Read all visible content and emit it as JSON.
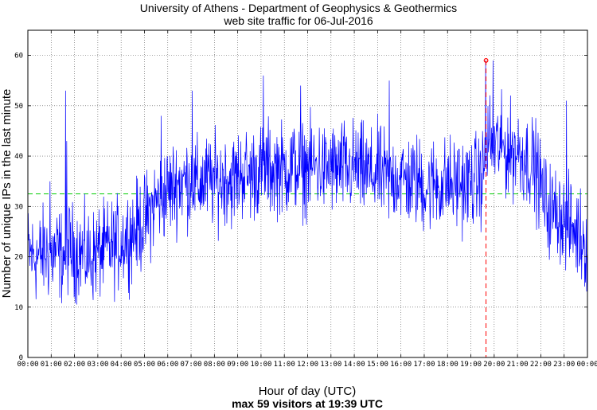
{
  "chart_data": {
    "type": "line",
    "title_lines": [
      "University of Athens - Department of Geophysics & Geothermics",
      "web site traffic for 06-Jul-2016"
    ],
    "xlabel": "Hour of day (UTC)",
    "xlabel_sub": "max 59 visitors at 19:39 UTC",
    "ylabel": "Number of unique IPs in the last minute",
    "x_unit": "hour",
    "xlim": [
      0,
      24
    ],
    "ylim": [
      0,
      65
    ],
    "y_ticks": [
      0,
      10,
      20,
      30,
      40,
      50,
      60
    ],
    "x_tick_labels": [
      "00:00",
      "01:00",
      "02:00",
      "03:00",
      "04:00",
      "05:00",
      "06:00",
      "07:00",
      "08:00",
      "09:00",
      "10:00",
      "11:00",
      "12:00",
      "13:00",
      "14:00",
      "15:00",
      "16:00",
      "17:00",
      "18:00",
      "19:00",
      "20:00",
      "21:00",
      "22:00",
      "23:00",
      "00:00"
    ],
    "grid": true,
    "series": [
      {
        "name": "unique IPs per minute",
        "color": "#0000ff",
        "x": [
          0,
          0.25,
          0.5,
          0.75,
          1.0,
          1.25,
          1.5,
          1.75,
          2.0,
          2.25,
          2.5,
          2.75,
          3.0,
          3.25,
          3.5,
          3.75,
          4.0,
          4.25,
          4.5,
          4.75,
          5.0,
          5.25,
          5.5,
          5.75,
          6.0,
          6.25,
          6.5,
          6.75,
          7.0,
          7.25,
          7.5,
          7.75,
          8.0,
          8.25,
          8.5,
          8.75,
          9.0,
          9.25,
          9.5,
          9.75,
          10.0,
          10.25,
          10.5,
          10.75,
          11.0,
          11.25,
          11.5,
          11.75,
          12.0,
          12.25,
          12.5,
          12.75,
          13.0,
          13.25,
          13.5,
          13.75,
          14.0,
          14.25,
          14.5,
          14.75,
          15.0,
          15.25,
          15.5,
          15.75,
          16.0,
          16.25,
          16.5,
          16.75,
          17.0,
          17.25,
          17.5,
          17.75,
          18.0,
          18.25,
          18.5,
          18.75,
          19.0,
          19.25,
          19.5,
          19.65,
          19.75,
          20.0,
          20.25,
          20.5,
          20.75,
          21.0,
          21.25,
          21.5,
          21.75,
          22.0,
          22.25,
          22.5,
          22.75,
          23.0,
          23.25,
          23.5,
          23.75,
          24.0
        ],
        "mean": [
          21,
          20,
          20,
          21,
          20,
          21,
          20,
          22,
          21,
          21,
          20,
          20,
          21,
          21,
          22,
          22,
          23,
          24,
          25,
          26,
          27,
          29,
          31,
          32,
          33,
          34,
          35,
          35,
          35,
          34,
          35,
          35,
          35,
          35,
          36,
          35,
          36,
          37,
          36,
          37,
          37,
          38,
          37,
          38,
          37,
          38,
          38,
          37,
          38,
          38,
          38,
          37,
          38,
          37,
          38,
          37,
          38,
          37,
          37,
          36,
          37,
          36,
          35,
          36,
          36,
          35,
          35,
          35,
          34,
          34,
          35,
          34,
          35,
          34,
          35,
          34,
          35,
          35,
          36,
          42,
          43,
          42,
          42,
          41,
          41,
          41,
          40,
          39,
          38,
          34,
          30,
          29,
          29,
          27,
          26,
          25,
          24,
          22
        ],
        "spread": 7,
        "spikes": [
          {
            "x": 0.95,
            "y": 35
          },
          {
            "x": 1.62,
            "y": 53
          },
          {
            "x": 1.67,
            "y": 43
          },
          {
            "x": 5.72,
            "y": 48
          },
          {
            "x": 7.05,
            "y": 53
          },
          {
            "x": 10.1,
            "y": 56
          },
          {
            "x": 11.7,
            "y": 54
          },
          {
            "x": 15.5,
            "y": 55
          },
          {
            "x": 19.63,
            "y": 59
          },
          {
            "x": 19.95,
            "y": 59
          },
          {
            "x": 23.1,
            "y": 51
          }
        ]
      }
    ],
    "mean_line": {
      "y": 32.5,
      "color": "#00cc00"
    },
    "max_marker": {
      "x": 19.65,
      "y": 59,
      "color": "#ff0000"
    }
  }
}
